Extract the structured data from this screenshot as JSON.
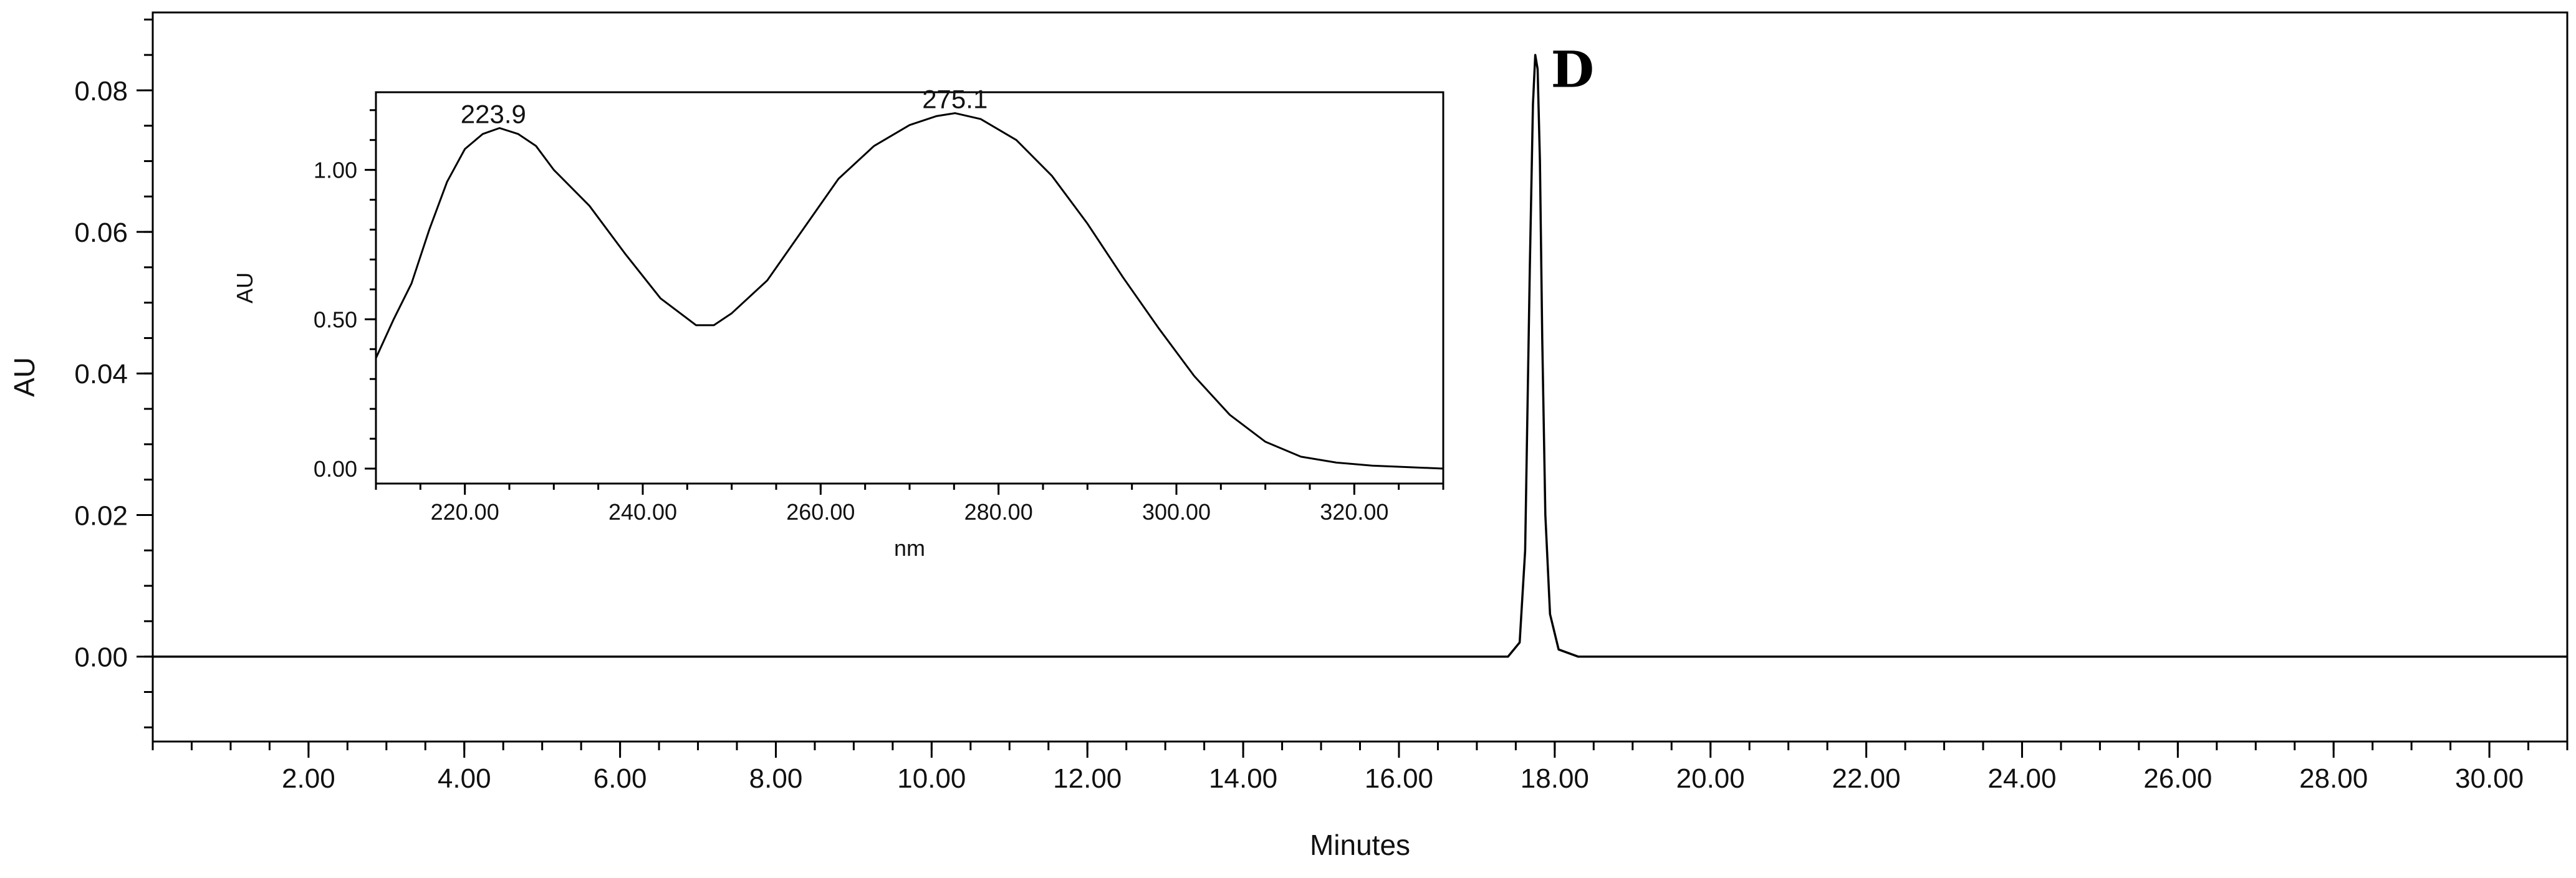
{
  "chart_data": [
    {
      "type": "line",
      "xlabel": "Minutes",
      "ylabel": "AU",
      "xlim": [
        0.0,
        31.0
      ],
      "ylim": [
        -0.012,
        0.091
      ],
      "x_ticks": [
        "2.00",
        "4.00",
        "6.00",
        "8.00",
        "10.00",
        "12.00",
        "14.00",
        "16.00",
        "18.00",
        "20.00",
        "22.00",
        "24.00",
        "26.00",
        "28.00",
        "30.00"
      ],
      "y_ticks": [
        "0.00",
        "0.02",
        "0.04",
        "0.06",
        "0.08"
      ],
      "series": [
        {
          "x": [
            0.0,
            17.4,
            17.55,
            17.62,
            17.68,
            17.72,
            17.75,
            17.78,
            17.81,
            17.84,
            17.88,
            17.94,
            18.05,
            18.3,
            31.0
          ],
          "y": [
            0.0,
            0.0,
            0.002,
            0.015,
            0.055,
            0.078,
            0.085,
            0.083,
            0.07,
            0.045,
            0.02,
            0.006,
            0.001,
            0.0,
            0.0
          ]
        }
      ],
      "annotations": [
        {
          "text": "D",
          "x": 17.95,
          "y": 0.084
        }
      ],
      "grid": false
    },
    {
      "type": "line",
      "xlabel": "nm",
      "ylabel": "AU",
      "xlim": [
        210.0,
        330.0
      ],
      "ylim": [
        -0.05,
        1.26
      ],
      "x_ticks": [
        "220.00",
        "240.00",
        "260.00",
        "280.00",
        "300.00",
        "320.00"
      ],
      "y_ticks": [
        "0.00",
        "0.50",
        "1.00"
      ],
      "series": [
        {
          "x": [
            210,
            212,
            214,
            216,
            218,
            220,
            222,
            223.9,
            226,
            228,
            230,
            234,
            238,
            242,
            246,
            248,
            250,
            254,
            258,
            262,
            266,
            270,
            273,
            275.1,
            278,
            282,
            286,
            290,
            294,
            298,
            302,
            306,
            310,
            314,
            318,
            322,
            326,
            330
          ],
          "y": [
            0.37,
            0.5,
            0.62,
            0.8,
            0.96,
            1.07,
            1.12,
            1.14,
            1.12,
            1.08,
            1.0,
            0.88,
            0.72,
            0.57,
            0.48,
            0.48,
            0.52,
            0.63,
            0.8,
            0.97,
            1.08,
            1.15,
            1.18,
            1.19,
            1.17,
            1.1,
            0.98,
            0.82,
            0.64,
            0.47,
            0.31,
            0.18,
            0.09,
            0.04,
            0.02,
            0.01,
            0.005,
            0.0
          ]
        }
      ],
      "annotations": [
        {
          "text": "223.9",
          "x": 223.9,
          "y": 1.14
        },
        {
          "text": "275.1",
          "x": 275.1,
          "y": 1.19
        }
      ],
      "grid": false
    }
  ]
}
